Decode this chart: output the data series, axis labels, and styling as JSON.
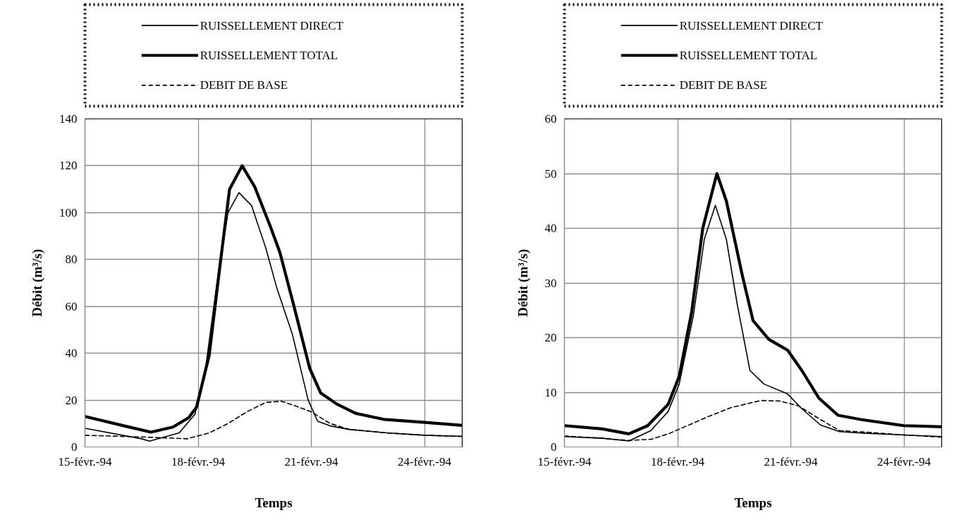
{
  "chart_data": [
    {
      "type": "line",
      "xlabel": "Temps",
      "ylabel": "Débit (m³/s)",
      "xlim": [
        "1994-02-15",
        "1994-02-25"
      ],
      "ylim": [
        0,
        140
      ],
      "xticks": [
        {
          "value": "1994-02-15",
          "label": "15-févr.-94"
        },
        {
          "value": "1994-02-18",
          "label": "18-févr.-94"
        },
        {
          "value": "1994-02-21",
          "label": "21-févr.-94"
        },
        {
          "value": "1994-02-24",
          "label": "24-févr.-94"
        }
      ],
      "yticks": [
        0,
        20,
        40,
        60,
        80,
        100,
        120,
        140
      ],
      "grid": true,
      "legend": "top",
      "marker": "none",
      "series": [
        {
          "name": "RUISSELLEMENT DIRECT",
          "color": "#000000",
          "line_style": "solid",
          "x": [
            "1994-02-15T00:00",
            "1994-02-16T12:00",
            "1994-02-16T17:00",
            "1994-02-17T12:00",
            "1994-02-17T22:00",
            "1994-02-18T05:00",
            "1994-02-18T13:00",
            "1994-02-18T19:00",
            "1994-02-19T02:00",
            "1994-02-19T10:00",
            "1994-02-19T19:00",
            "1994-02-20T02:00",
            "1994-02-20T12:00",
            "1994-02-20T22:00",
            "1994-02-21T04:00",
            "1994-02-21T12:00",
            "1994-02-22T00:00",
            "1994-02-23T00:00",
            "1994-02-24T00:00",
            "1994-02-25T00:00"
          ],
          "values": [
            8,
            3.5,
            2.5,
            6,
            14,
            35,
            75,
            100,
            108.5,
            103,
            85,
            68,
            48,
            20,
            11,
            9,
            7.5,
            6,
            5,
            4.5
          ]
        },
        {
          "name": "RUISSELLEMENT  TOTAL",
          "color": "#000000",
          "line_style": "solid",
          "x": [
            "1994-02-15T00:00",
            "1994-02-16T01:00",
            "1994-02-16T18:00",
            "1994-02-17T08:00",
            "1994-02-17T18:00",
            "1994-02-17T23:00",
            "1994-02-18T07:00",
            "1994-02-18T14:00",
            "1994-02-18T20:00",
            "1994-02-19T04:00",
            "1994-02-19T12:00",
            "1994-02-19T22:00",
            "1994-02-20T04:00",
            "1994-02-20T13:00",
            "1994-02-20T23:00",
            "1994-02-21T06:00",
            "1994-02-21T16:00",
            "1994-02-22T04:00",
            "1994-02-22T22:00",
            "1994-02-24T00:00",
            "1994-02-25T00:00"
          ],
          "values": [
            13,
            9,
            6.3,
            8.5,
            12.5,
            17,
            39,
            78,
            110,
            120,
            111,
            94,
            83,
            60,
            33.5,
            23,
            18.4,
            14.4,
            11.8,
            10.5,
            9.2
          ]
        },
        {
          "name": "DEBIT DE BASE",
          "color": "#000000",
          "line_style": "dashed",
          "x": [
            "1994-02-15T00:00",
            "1994-02-17T00:00",
            "1994-02-17T17:00",
            "1994-02-18T07:00",
            "1994-02-18T19:00",
            "1994-02-19T07:00",
            "1994-02-19T19:00",
            "1994-02-20T05:00",
            "1994-02-20T14:00",
            "1994-02-21T00:00",
            "1994-02-21T12:00",
            "1994-02-22T00:00",
            "1994-02-23T00:00",
            "1994-02-24T00:00",
            "1994-02-25T00:00"
          ],
          "values": [
            5,
            4,
            3.5,
            6,
            10,
            15,
            19,
            19.5,
            17.5,
            15,
            10,
            7.5,
            6,
            5,
            4.5
          ]
        }
      ]
    },
    {
      "type": "line",
      "xlabel": "Temps",
      "ylabel": "Débit (m³/s)",
      "xlim": [
        "1994-02-15",
        "1994-02-25"
      ],
      "ylim": [
        0,
        60
      ],
      "xticks": [
        {
          "value": "1994-02-15",
          "label": "15-févr.-94"
        },
        {
          "value": "1994-02-18",
          "label": "18-févr.-94"
        },
        {
          "value": "1994-02-21",
          "label": "21-févr.-94"
        },
        {
          "value": "1994-02-24",
          "label": "24-févr.-94"
        }
      ],
      "yticks": [
        0,
        10,
        20,
        30,
        40,
        50,
        60
      ],
      "grid": true,
      "legend": "top",
      "marker": "none",
      "series": [
        {
          "name": "RUISSELLEMENT DIRECT",
          "color": "#000000",
          "line_style": "solid",
          "x": [
            "1994-02-15T00:00",
            "1994-02-16T00:00",
            "1994-02-16T17:00",
            "1994-02-17T07:00",
            "1994-02-17T18:00",
            "1994-02-18T01:00",
            "1994-02-18T10:00",
            "1994-02-18T17:00",
            "1994-02-19T00:00",
            "1994-02-19T07:00",
            "1994-02-19T14:00",
            "1994-02-19T22:00",
            "1994-02-20T07:00",
            "1994-02-20T22:00",
            "1994-02-21T07:00",
            "1994-02-21T19:00",
            "1994-02-22T07:00",
            "1994-02-23T00:00",
            "1994-02-24T00:00",
            "1994-02-25T00:00"
          ],
          "values": [
            1.9,
            1.6,
            1.1,
            3,
            6.5,
            11.5,
            24,
            38,
            44.2,
            38,
            26,
            14,
            11.5,
            9.7,
            7,
            4,
            2.8,
            2.5,
            2.2,
            1.9
          ]
        },
        {
          "name": "RUISSELLEMENT  TOTAL",
          "color": "#000000",
          "line_style": "solid",
          "x": [
            "1994-02-15T00:00",
            "1994-02-16T00:00",
            "1994-02-16T17:00",
            "1994-02-17T05:00",
            "1994-02-17T18:00",
            "1994-02-18T01:00",
            "1994-02-18T09:00",
            "1994-02-18T16:00",
            "1994-02-19T01:00",
            "1994-02-19T07:00",
            "1994-02-19T17:00",
            "1994-02-20T00:00",
            "1994-02-20T10:00",
            "1994-02-20T22:00",
            "1994-02-21T07:00",
            "1994-02-21T18:00",
            "1994-02-22T06:00",
            "1994-02-22T21:00",
            "1994-02-24T00:00",
            "1994-02-25T00:00"
          ],
          "values": [
            3.9,
            3.3,
            2.4,
            3.9,
            7.8,
            12.9,
            24.8,
            40,
            50,
            45,
            31.6,
            23.1,
            19.7,
            17.7,
            14,
            8.9,
            5.8,
            5,
            3.9,
            3.7
          ]
        },
        {
          "name": "DEBIT DE BASE",
          "color": "#000000",
          "line_style": "dashed",
          "x": [
            "1994-02-15T00:00",
            "1994-02-16T00:00",
            "1994-02-16T17:00",
            "1994-02-17T07:00",
            "1994-02-17T19:00",
            "1994-02-18T07:00",
            "1994-02-18T19:00",
            "1994-02-19T10:00",
            "1994-02-20T05:00",
            "1994-02-20T17:00",
            "1994-02-21T05:00",
            "1994-02-21T19:00",
            "1994-02-22T07:00",
            "1994-02-23T00:00",
            "1994-02-24T00:00",
            "1994-02-25T00:00"
          ],
          "values": [
            2,
            1.6,
            1.2,
            1.4,
            2.5,
            4,
            5.5,
            7.2,
            8.5,
            8.4,
            7.5,
            5,
            3,
            2.7,
            2.2,
            1.8
          ]
        }
      ]
    }
  ]
}
